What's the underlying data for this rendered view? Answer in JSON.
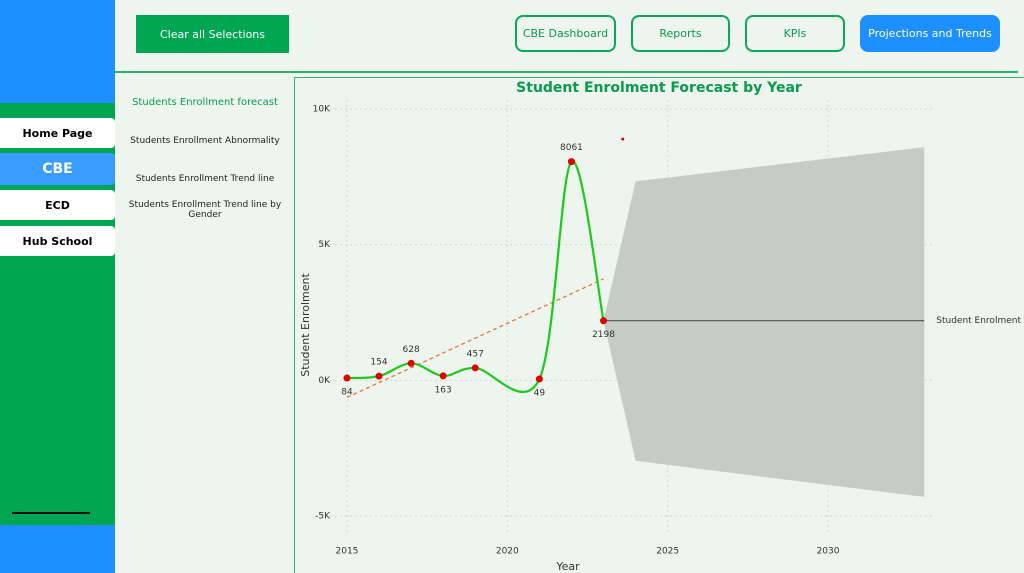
{
  "sidebar": {
    "nav": [
      "Home Page",
      "CBE",
      "ECD",
      "Hub School"
    ],
    "active": 1
  },
  "header": {
    "clear_button": "Clear all Selections",
    "tabs": [
      "CBE Dashboard",
      "Reports",
      "KPIs",
      "Projections and Trends"
    ],
    "active_tab": 3
  },
  "menu": {
    "items": [
      "Students Enrollment forecast",
      "Students Enrollment Abnormality",
      "Students Enrollment Trend line",
      "Students Enrollment Trend line by Gender"
    ],
    "active": 0
  },
  "chart_data": {
    "type": "line",
    "title": "Student Enrolment Forecast by Year",
    "x_label": "Year",
    "y_label": "Student Enrolment",
    "x": [
      2015,
      2016,
      2017,
      2018,
      2019,
      2021,
      2022,
      2023
    ],
    "values": [
      84,
      154,
      628,
      163,
      457,
      49,
      8061,
      2198
    ],
    "color": "#1ec81e",
    "point_color": "#e00000",
    "xlim": [
      2014.2,
      2033.6
    ],
    "ylim": [
      -5000,
      10000
    ],
    "xticks": [
      2015,
      2020,
      2025,
      2030
    ],
    "yticks": [
      {
        "value": -5000,
        "label": "-5K"
      },
      {
        "value": 0,
        "label": "0K"
      },
      {
        "value": 5000,
        "label": "5K"
      },
      {
        "value": 10000,
        "label": "10K"
      }
    ],
    "grid": true,
    "trend": {
      "x": [
        2015,
        2023
      ],
      "values": [
        -630,
        3740
      ],
      "color": "#e07a3a"
    },
    "forecast": {
      "name": "Student Enrolment",
      "x": [
        2023,
        2024,
        2033
      ],
      "values": [
        2198,
        2198,
        2198
      ],
      "upper": [
        2198,
        7333,
        8593
      ],
      "lower": [
        2198,
        -2963,
        -4296
      ],
      "color": "#444444",
      "band_color": "#c6cbc4"
    },
    "marker": {
      "x": 2023.6,
      "y": 8890,
      "color": "#e00000"
    }
  }
}
